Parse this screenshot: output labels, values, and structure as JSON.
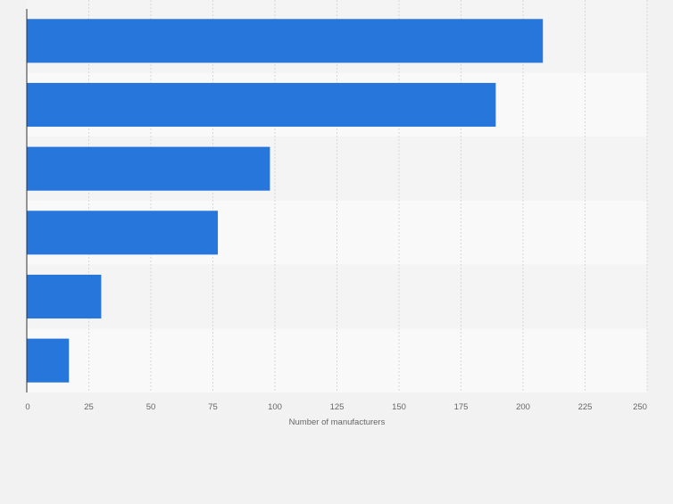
{
  "chart_data": {
    "type": "bar",
    "orientation": "horizontal",
    "categories": [
      "",
      "",
      "",
      "",
      "",
      ""
    ],
    "values": [
      208,
      189,
      98,
      77,
      30,
      17
    ],
    "title": "",
    "xlabel": "Number of manufacturers",
    "ylabel": "",
    "xlim": [
      0,
      250
    ],
    "x_ticks": [
      "0",
      "25",
      "50",
      "75",
      "100",
      "125",
      "150",
      "175",
      "200",
      "225",
      "250"
    ],
    "grid": true,
    "legend": "none",
    "bar_color": "#2776dc",
    "band_colors": [
      "#f4f4f4",
      "#f9f9f9"
    ],
    "background_color": "#f2f2f2"
  }
}
